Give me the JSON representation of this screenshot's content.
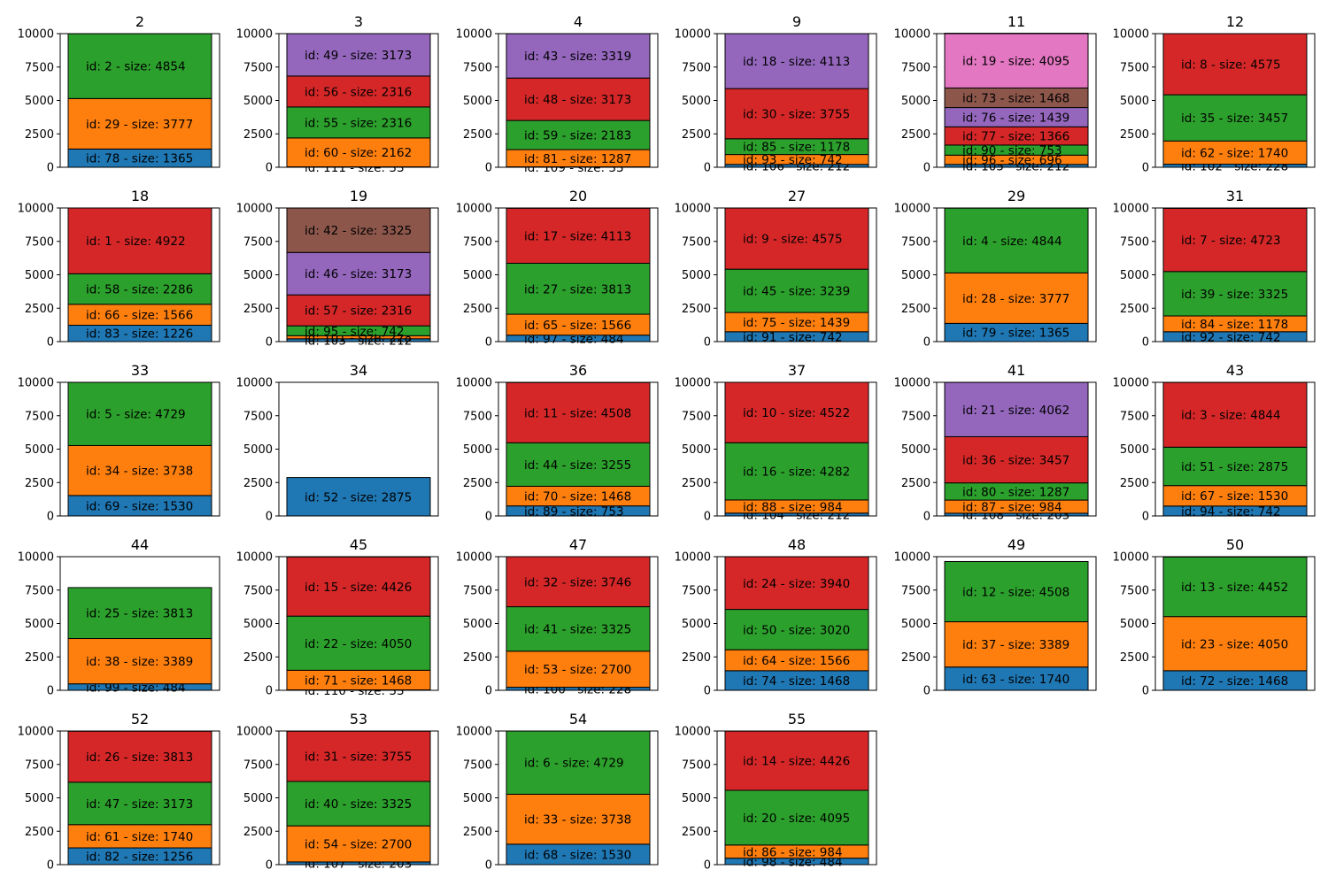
{
  "chart_data": {
    "type": "bar",
    "stacked": true,
    "ylim": [
      0,
      10000
    ],
    "yticks": [
      0,
      2500,
      5000,
      7500,
      10000
    ],
    "label_template": "id: {id} - size: {size}",
    "colors": [
      "#1f77b4",
      "#ff7f0e",
      "#2ca02c",
      "#d62728",
      "#9467bd",
      "#8c564b",
      "#e377c2"
    ],
    "panels": [
      {
        "title": "2",
        "segments": [
          {
            "id": 78,
            "size": 1365
          },
          {
            "id": 29,
            "size": 3777
          },
          {
            "id": 2,
            "size": 4854
          }
        ]
      },
      {
        "title": "3",
        "segments": [
          {
            "id": 111,
            "size": 33
          },
          {
            "id": 60,
            "size": 2162
          },
          {
            "id": 55,
            "size": 2316
          },
          {
            "id": 56,
            "size": 2316
          },
          {
            "id": 49,
            "size": 3173
          }
        ]
      },
      {
        "title": "4",
        "segments": [
          {
            "id": 109,
            "size": 33
          },
          {
            "id": 81,
            "size": 1287
          },
          {
            "id": 59,
            "size": 2183
          },
          {
            "id": 48,
            "size": 3173
          },
          {
            "id": 43,
            "size": 3319
          }
        ]
      },
      {
        "title": "9",
        "segments": [
          {
            "id": 106,
            "size": 212
          },
          {
            "id": 93,
            "size": 742
          },
          {
            "id": 85,
            "size": 1178
          },
          {
            "id": 30,
            "size": 3755
          },
          {
            "id": 18,
            "size": 4113
          }
        ]
      },
      {
        "title": "11",
        "segments": [
          {
            "id": 105,
            "size": 212
          },
          {
            "id": 96,
            "size": 696
          },
          {
            "id": 90,
            "size": 753
          },
          {
            "id": 77,
            "size": 1366
          },
          {
            "id": 76,
            "size": 1439
          },
          {
            "id": 73,
            "size": 1468
          },
          {
            "id": 19,
            "size": 4095
          }
        ]
      },
      {
        "title": "12",
        "segments": [
          {
            "id": 102,
            "size": 228
          },
          {
            "id": 62,
            "size": 1740
          },
          {
            "id": 35,
            "size": 3457
          },
          {
            "id": 8,
            "size": 4575
          }
        ]
      },
      {
        "title": "18",
        "segments": [
          {
            "id": 83,
            "size": 1226
          },
          {
            "id": 66,
            "size": 1566
          },
          {
            "id": 58,
            "size": 2286
          },
          {
            "id": 1,
            "size": 4922
          }
        ]
      },
      {
        "title": "19",
        "segments": [
          {
            "id": 103,
            "size": 212
          },
          {
            "id": 101,
            "size": 228
          },
          {
            "id": 95,
            "size": 742
          },
          {
            "id": 57,
            "size": 2316
          },
          {
            "id": 46,
            "size": 3173
          },
          {
            "id": 42,
            "size": 3325
          }
        ]
      },
      {
        "title": "20",
        "segments": [
          {
            "id": 97,
            "size": 484
          },
          {
            "id": 65,
            "size": 1566
          },
          {
            "id": 27,
            "size": 3813
          },
          {
            "id": 17,
            "size": 4113
          }
        ]
      },
      {
        "title": "27",
        "segments": [
          {
            "id": 91,
            "size": 742
          },
          {
            "id": 75,
            "size": 1439
          },
          {
            "id": 45,
            "size": 3239
          },
          {
            "id": 9,
            "size": 4575
          }
        ]
      },
      {
        "title": "29",
        "segments": [
          {
            "id": 79,
            "size": 1365
          },
          {
            "id": 28,
            "size": 3777
          },
          {
            "id": 4,
            "size": 4844
          }
        ]
      },
      {
        "title": "31",
        "segments": [
          {
            "id": 92,
            "size": 742
          },
          {
            "id": 84,
            "size": 1178
          },
          {
            "id": 39,
            "size": 3325
          },
          {
            "id": 7,
            "size": 4723
          }
        ]
      },
      {
        "title": "33",
        "segments": [
          {
            "id": 69,
            "size": 1530
          },
          {
            "id": 34,
            "size": 3738
          },
          {
            "id": 5,
            "size": 4729
          }
        ]
      },
      {
        "title": "34",
        "segments": [
          {
            "id": 52,
            "size": 2875
          }
        ]
      },
      {
        "title": "36",
        "segments": [
          {
            "id": 89,
            "size": 753
          },
          {
            "id": 70,
            "size": 1468
          },
          {
            "id": 44,
            "size": 3255
          },
          {
            "id": 11,
            "size": 4508
          }
        ]
      },
      {
        "title": "37",
        "segments": [
          {
            "id": 104,
            "size": 212
          },
          {
            "id": 88,
            "size": 984
          },
          {
            "id": 16,
            "size": 4282
          },
          {
            "id": 10,
            "size": 4522
          }
        ]
      },
      {
        "title": "41",
        "segments": [
          {
            "id": 108,
            "size": 203
          },
          {
            "id": 87,
            "size": 984
          },
          {
            "id": 80,
            "size": 1287
          },
          {
            "id": 36,
            "size": 3457
          },
          {
            "id": 21,
            "size": 4062
          }
        ]
      },
      {
        "title": "43",
        "segments": [
          {
            "id": 94,
            "size": 742
          },
          {
            "id": 67,
            "size": 1530
          },
          {
            "id": 51,
            "size": 2875
          },
          {
            "id": 3,
            "size": 4844
          }
        ]
      },
      {
        "title": "44",
        "segments": [
          {
            "id": 99,
            "size": 484
          },
          {
            "id": 38,
            "size": 3389
          },
          {
            "id": 25,
            "size": 3813
          }
        ]
      },
      {
        "title": "45",
        "segments": [
          {
            "id": 110,
            "size": 33
          },
          {
            "id": 71,
            "size": 1468
          },
          {
            "id": 22,
            "size": 4050
          },
          {
            "id": 15,
            "size": 4426
          }
        ]
      },
      {
        "title": "47",
        "segments": [
          {
            "id": 100,
            "size": 228
          },
          {
            "id": 53,
            "size": 2700
          },
          {
            "id": 41,
            "size": 3325
          },
          {
            "id": 32,
            "size": 3746
          }
        ]
      },
      {
        "title": "48",
        "segments": [
          {
            "id": 74,
            "size": 1468
          },
          {
            "id": 64,
            "size": 1566
          },
          {
            "id": 50,
            "size": 3020
          },
          {
            "id": 24,
            "size": 3940
          }
        ]
      },
      {
        "title": "49",
        "segments": [
          {
            "id": 63,
            "size": 1740
          },
          {
            "id": 37,
            "size": 3389
          },
          {
            "id": 12,
            "size": 4508
          }
        ]
      },
      {
        "title": "50",
        "segments": [
          {
            "id": 72,
            "size": 1468
          },
          {
            "id": 23,
            "size": 4050
          },
          {
            "id": 13,
            "size": 4452
          }
        ]
      },
      {
        "title": "52",
        "segments": [
          {
            "id": 82,
            "size": 1256
          },
          {
            "id": 61,
            "size": 1740
          },
          {
            "id": 47,
            "size": 3173
          },
          {
            "id": 26,
            "size": 3813
          }
        ]
      },
      {
        "title": "53",
        "segments": [
          {
            "id": 107,
            "size": 203
          },
          {
            "id": 54,
            "size": 2700
          },
          {
            "id": 40,
            "size": 3325
          },
          {
            "id": 31,
            "size": 3755
          }
        ]
      },
      {
        "title": "54",
        "segments": [
          {
            "id": 68,
            "size": 1530
          },
          {
            "id": 33,
            "size": 3738
          },
          {
            "id": 6,
            "size": 4729
          }
        ]
      },
      {
        "title": "55",
        "segments": [
          {
            "id": 98,
            "size": 484
          },
          {
            "id": 86,
            "size": 984
          },
          {
            "id": 20,
            "size": 4095
          },
          {
            "id": 14,
            "size": 4426
          }
        ]
      }
    ]
  }
}
